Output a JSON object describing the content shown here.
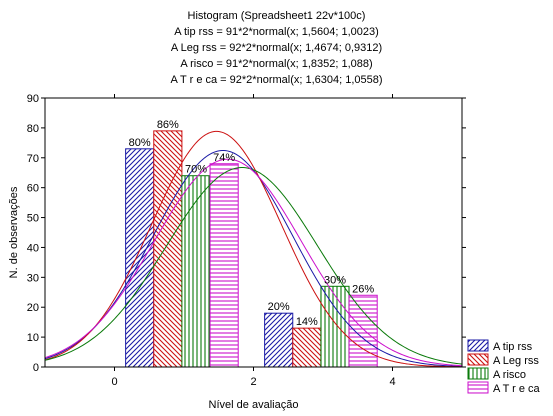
{
  "chart_data": {
    "type": "bar",
    "title": "Histogram (Spreadsheet1 22v*100c)",
    "subtitle_lines": [
      "A tip rss = 91*2*normal(x; 1,5604; 1,0023)",
      "A Leg rss = 92*2*normal(x; 1,4674; 0,9312)",
      "A risco = 91*2*normal(x; 1,8352; 1,088)",
      "A T r e ca = 92*2*normal(x; 1,6304; 1,0558)"
    ],
    "xlabel": "Nível de avaliação",
    "ylabel": "N. de observações",
    "xlim": [
      -1,
      5
    ],
    "ylim": [
      0,
      90
    ],
    "x_ticks": [
      0,
      2,
      4
    ],
    "y_ticks": [
      0,
      10,
      20,
      30,
      40,
      50,
      60,
      70,
      80,
      90
    ],
    "categories": [
      1,
      3
    ],
    "bin_width": 2,
    "series": [
      {
        "name": "A tip rss",
        "values": [
          73,
          18
        ],
        "labels": [
          "80%",
          "20%"
        ],
        "color": "#1a1aa6",
        "pattern": "diag-right",
        "fit": {
          "n": 91,
          "mean": 1.5604,
          "sd": 1.0023
        }
      },
      {
        "name": "A Leg rss",
        "values": [
          79,
          13
        ],
        "labels": [
          "86%",
          "14%"
        ],
        "color": "#cc1111",
        "pattern": "diag-left",
        "fit": {
          "n": 92,
          "mean": 1.4674,
          "sd": 0.9312
        }
      },
      {
        "name": "A risco",
        "values": [
          64,
          27
        ],
        "labels": [
          "70%",
          "30%"
        ],
        "color": "#0a7a0a",
        "pattern": "vertical",
        "fit": {
          "n": 91,
          "mean": 1.8352,
          "sd": 1.088
        }
      },
      {
        "name": "A T r e ca",
        "values": [
          68,
          24
        ],
        "labels": [
          "74%",
          "26%"
        ],
        "color": "#cc11cc",
        "pattern": "horizontal",
        "fit": {
          "n": 92,
          "mean": 1.6304,
          "sd": 1.0558
        }
      }
    ],
    "legend_position": "bottom-right",
    "grid": false
  }
}
